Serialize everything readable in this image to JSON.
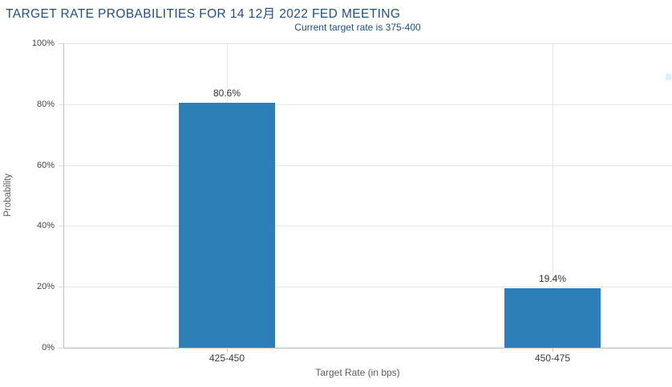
{
  "chart_data": {
    "type": "bar",
    "title": "TARGET RATE PROBABILITIES FOR 14 12月 2022 FED MEETING",
    "subtitle": "Current target rate is 375-400",
    "categories": [
      "425-450",
      "450-475"
    ],
    "values": [
      80.6,
      19.4
    ],
    "data_labels": [
      "80.6%",
      "19.4%"
    ],
    "xlabel": "Target Rate (in bps)",
    "ylabel": "Probability",
    "ylim": [
      0,
      100
    ],
    "ytick_step": 20,
    "ytick_labels": [
      "0%",
      "20%",
      "40%",
      "60%",
      "80%",
      "100%"
    ],
    "grid": true,
    "legend_position": "none",
    "colors": {
      "bar": "#2d7fb8",
      "title": "#234f7b",
      "subtitle": "#1f4e79",
      "gridline": "#e6e6e6",
      "axis_line": "#c0c0c0",
      "tick_label": "#444444",
      "axis_title": "#5a5a5a",
      "data_label": "#333333",
      "background": "#ffffff"
    }
  }
}
